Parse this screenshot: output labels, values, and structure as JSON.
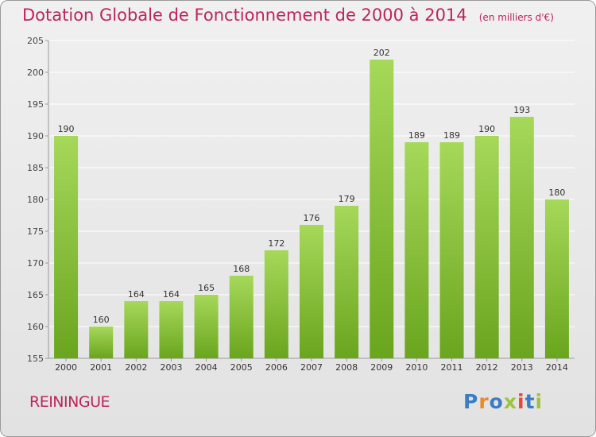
{
  "header": {
    "title": "Dotation Globale de Fonctionnement de 2000 à 2014",
    "unit": "(en milliers d'€)"
  },
  "footer": {
    "commune": "REININGUE",
    "logo_letters": [
      "P",
      "r",
      "o",
      "x",
      "i",
      "t",
      "i"
    ]
  },
  "colors": {
    "title": "#c0245a",
    "bar_light": "#a6d85a",
    "bar_dark": "#6aa51e",
    "logo": [
      "#3a7cc7",
      "#e8892a",
      "#3a7cc7",
      "#9bc53d",
      "#e04a3a",
      "#3a7cc7",
      "#9bc53d"
    ]
  },
  "chart_data": {
    "type": "bar",
    "categories": [
      "2000",
      "2001",
      "2002",
      "2003",
      "2004",
      "2005",
      "2006",
      "2007",
      "2008",
      "2009",
      "2010",
      "2011",
      "2012",
      "2013",
      "2014"
    ],
    "values": [
      190,
      160,
      164,
      164,
      165,
      168,
      172,
      176,
      179,
      202,
      189,
      189,
      190,
      193,
      180
    ],
    "ylim": [
      155,
      205
    ],
    "yticks": [
      155,
      160,
      165,
      170,
      175,
      180,
      185,
      190,
      195,
      200,
      205
    ],
    "grid": true,
    "legend": "none"
  }
}
